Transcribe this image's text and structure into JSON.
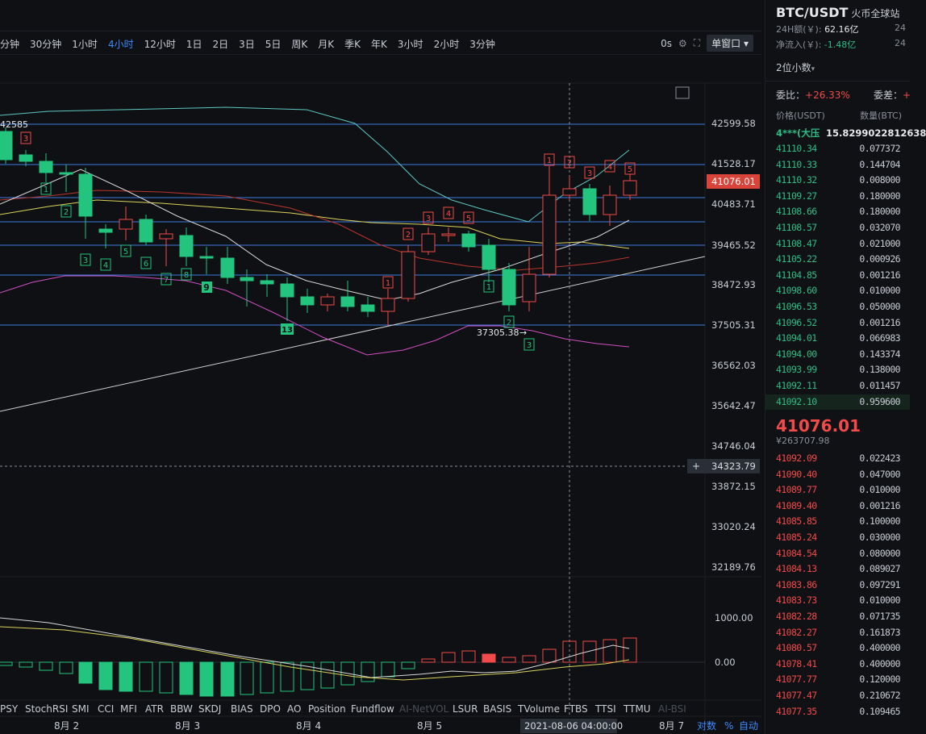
{
  "toolbar": {
    "timeframes": [
      {
        "label": "分钟",
        "active": false
      },
      {
        "label": "30分钟",
        "active": false
      },
      {
        "label": "1小时",
        "active": false
      },
      {
        "label": "4小时",
        "active": true
      },
      {
        "label": "12小时",
        "active": false
      },
      {
        "label": "1日",
        "active": false
      },
      {
        "label": "2日",
        "active": false
      },
      {
        "label": "3日",
        "active": false
      },
      {
        "label": "5日",
        "active": false
      },
      {
        "label": "周K",
        "active": false
      },
      {
        "label": "月K",
        "active": false
      },
      {
        "label": "季K",
        "active": false
      },
      {
        "label": "年K",
        "active": false
      },
      {
        "label": "3小时",
        "active": false
      },
      {
        "label": "2小时",
        "active": false
      },
      {
        "label": "3分钟",
        "active": false
      }
    ],
    "countdown": "0s",
    "window_mode": "单窗口"
  },
  "chart": {
    "price_ticks": [
      "42599.58",
      "41528.17",
      "40483.71",
      "39465.52",
      "38472.93",
      "37505.31",
      "36562.03",
      "35642.47",
      "34746.04",
      "33872.15",
      "33020.24",
      "32189.76"
    ],
    "current_price": "41076.01",
    "crosshair_price": "34323.79",
    "high_label": "42585",
    "low_label": "37305.38",
    "osc_ticks": [
      "1000.00",
      "0.00"
    ],
    "indicators": [
      {
        "label": "PSY",
        "disabled": false
      },
      {
        "label": "StochRSI",
        "disabled": false
      },
      {
        "label": "SMI",
        "disabled": false
      },
      {
        "label": "CCI",
        "disabled": false
      },
      {
        "label": "MFI",
        "disabled": false
      },
      {
        "label": "ATR",
        "disabled": false
      },
      {
        "label": "BBW",
        "disabled": false
      },
      {
        "label": "SKDJ",
        "disabled": false
      },
      {
        "label": "BIAS",
        "disabled": false
      },
      {
        "label": "DPO",
        "disabled": false
      },
      {
        "label": "AO",
        "disabled": false
      },
      {
        "label": "Position",
        "disabled": false
      },
      {
        "label": "Fundflow",
        "disabled": false
      },
      {
        "label": "AI-NetVOL",
        "disabled": true
      },
      {
        "label": "LSUR",
        "disabled": false
      },
      {
        "label": "BASIS",
        "disabled": false
      },
      {
        "label": "TVolume",
        "disabled": false
      },
      {
        "label": "FTBS",
        "disabled": false
      },
      {
        "label": "TTSI",
        "disabled": false
      },
      {
        "label": "TTMU",
        "disabled": false
      },
      {
        "label": "AI-BSI",
        "disabled": true
      }
    ],
    "dates": [
      "8月 2",
      "8月 3",
      "8月 4",
      "8月 5",
      "8月 7"
    ],
    "crosshair_time": "2021-08-06 04:00:00",
    "scale_options": {
      "log": "对数",
      "percent": "%",
      "auto": "自动"
    },
    "colors": {
      "up": "#f24a4a",
      "down": "#22c47e",
      "price_line": "#3d7be0",
      "bg": "#0f1013"
    }
  },
  "sidebar": {
    "pair": "BTC/USDT",
    "exchange": "火币全球站",
    "vol_label": "24H额(￥):",
    "vol_value": "62.16亿",
    "vol_ghost": "24",
    "flow_label": "净流入(￥):",
    "flow_value": "-1.48亿",
    "flow_ghost": "24",
    "decimals": "2位小数",
    "ratio_label": "委比：",
    "ratio_value": "+26.33%",
    "diff_label": "委差：",
    "diff_value": "+",
    "col_price": "价格(USDT)",
    "col_qty": "数量(BTC)",
    "top_row": {
      "price": "4***(大压",
      "qty": "15.8299022812638"
    },
    "bids": [
      [
        "41110.34",
        "0.077372"
      ],
      [
        "41110.33",
        "0.144704"
      ],
      [
        "41110.32",
        "0.008000"
      ],
      [
        "41109.27",
        "0.180000"
      ],
      [
        "41108.66",
        "0.180000"
      ],
      [
        "41108.57",
        "0.032070"
      ],
      [
        "41108.47",
        "0.021000"
      ],
      [
        "41105.22",
        "0.000926"
      ],
      [
        "41104.85",
        "0.001216"
      ],
      [
        "41098.60",
        "0.010000"
      ],
      [
        "41096.53",
        "0.050000"
      ],
      [
        "41096.52",
        "0.001216"
      ],
      [
        "41094.01",
        "0.066983"
      ],
      [
        "41094.00",
        "0.143374"
      ],
      [
        "41093.99",
        "0.138000"
      ],
      [
        "41092.11",
        "0.011457"
      ],
      [
        "41092.10",
        "0.959600"
      ]
    ],
    "last_price": "41076.01",
    "last_cny": "¥263707.98",
    "asks": [
      [
        "41092.09",
        "0.022423"
      ],
      [
        "41090.40",
        "0.047000"
      ],
      [
        "41089.77",
        "0.010000"
      ],
      [
        "41089.40",
        "0.001216"
      ],
      [
        "41085.85",
        "0.100000"
      ],
      [
        "41085.24",
        "0.030000"
      ],
      [
        "41084.54",
        "0.080000"
      ],
      [
        "41084.13",
        "0.089027"
      ],
      [
        "41083.86",
        "0.097291"
      ],
      [
        "41083.73",
        "0.010000"
      ],
      [
        "41082.28",
        "0.071735"
      ],
      [
        "41082.27",
        "0.161873"
      ],
      [
        "41080.57",
        "0.400000"
      ],
      [
        "41078.41",
        "0.400000"
      ],
      [
        "41077.77",
        "0.120000"
      ],
      [
        "41077.47",
        "0.210672"
      ],
      [
        "41077.35",
        "0.109465"
      ]
    ]
  }
}
